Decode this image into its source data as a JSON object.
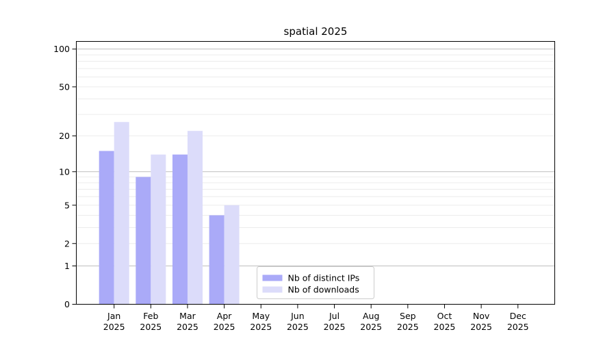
{
  "chart_data": {
    "type": "bar",
    "title": "spatial 2025",
    "categories": [
      "Jan",
      "Feb",
      "Mar",
      "Apr",
      "May",
      "Jun",
      "Jul",
      "Aug",
      "Sep",
      "Oct",
      "Nov",
      "Dec"
    ],
    "category_year": "2025",
    "series": [
      {
        "name": "Nb of distinct IPs",
        "color": "#aaaaf8",
        "values": [
          15,
          9,
          14,
          4,
          0,
          0,
          0,
          0,
          0,
          0,
          0,
          0
        ]
      },
      {
        "name": "Nb of downloads",
        "color": "#dcdcfa",
        "values": [
          26,
          14,
          22,
          5,
          0,
          0,
          0,
          0,
          0,
          0,
          0,
          0
        ]
      }
    ],
    "yscale": "log1p",
    "ylim": [
      0,
      115
    ],
    "yticks": [
      0,
      1,
      2,
      5,
      10,
      20,
      50,
      100
    ],
    "grid": {
      "major_values": [
        1,
        10,
        100
      ],
      "minor_values": [
        2,
        3,
        4,
        5,
        6,
        7,
        8,
        9,
        20,
        30,
        40,
        50,
        60,
        70,
        80,
        90
      ],
      "major_color": "#bdbdbd",
      "minor_color": "#ececec"
    },
    "legend": {
      "position": "lower center"
    },
    "axis_color": "#000000",
    "background_color": "#ffffff"
  }
}
